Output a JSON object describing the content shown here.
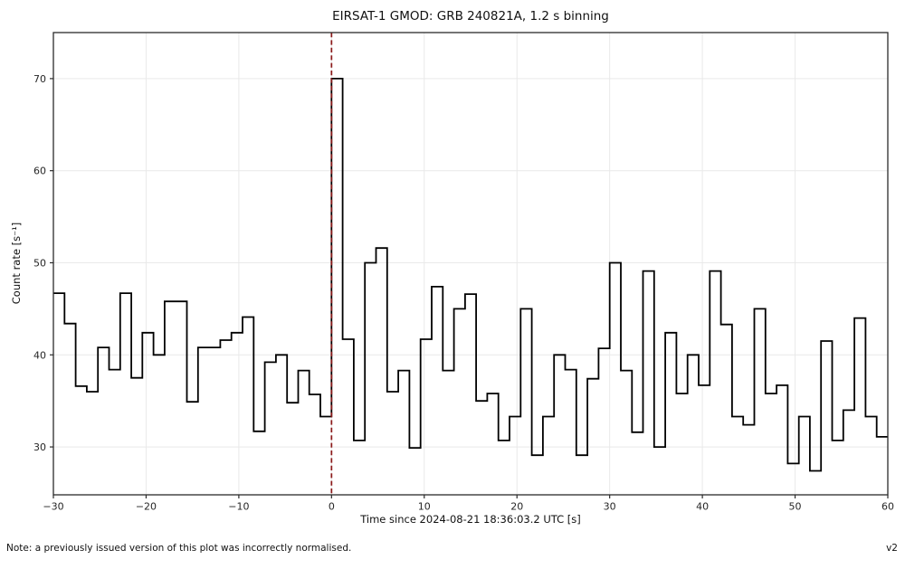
{
  "chart_data": {
    "type": "step-histogram",
    "title": "EIRSAT-1 GMOD: GRB 240821A, 1.2 s binning",
    "xlabel": "Time since 2024-08-21 18:36:03.2 UTC [s]",
    "ylabel": "Count rate [s⁻¹]",
    "bin_start_s": -30,
    "bin_width_s": 1.2,
    "xlim": [
      -30,
      60
    ],
    "ylim": [
      24.8,
      75.0
    ],
    "xticks": [
      -30,
      -20,
      -10,
      0,
      10,
      20,
      30,
      40,
      50,
      60
    ],
    "yticks": [
      30,
      40,
      50,
      60,
      70
    ],
    "grid": true,
    "legend": "none",
    "line_color": "#000000",
    "grid_color": "#e9e9e9",
    "spine_color": "#2b2b2b",
    "vline": {
      "x": 0,
      "color": "#8b1a1a",
      "style": "dashed"
    },
    "values": [
      46.7,
      43.4,
      36.6,
      36.0,
      40.8,
      38.4,
      46.7,
      37.5,
      42.4,
      40.0,
      45.8,
      45.8,
      34.9,
      40.8,
      40.8,
      41.6,
      42.4,
      44.1,
      31.7,
      39.2,
      40.0,
      34.8,
      38.3,
      35.7,
      33.3,
      70.0,
      41.7,
      30.7,
      50.0,
      51.6,
      36.0,
      38.3,
      29.9,
      41.7,
      47.4,
      38.3,
      45.0,
      46.6,
      35.0,
      35.8,
      30.7,
      33.3,
      45.0,
      29.1,
      33.3,
      40.0,
      38.4,
      29.1,
      37.4,
      40.7,
      50.0,
      38.3,
      31.6,
      49.1,
      30.0,
      42.4,
      35.8,
      40.0,
      36.7,
      49.1,
      43.3,
      33.3,
      32.4,
      45.0,
      35.8,
      36.7,
      28.2,
      33.3,
      27.4,
      41.5,
      30.7,
      34.0,
      44.0,
      33.3,
      31.1
    ]
  },
  "footer": {
    "note": "Note: a previously issued version of this plot was incorrectly normalised.",
    "version": "v2"
  }
}
